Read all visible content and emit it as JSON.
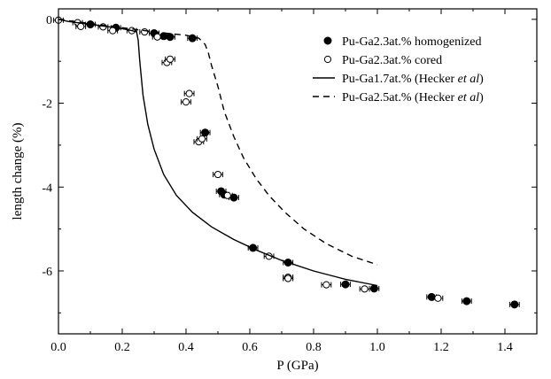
{
  "chart_data": {
    "type": "scatter",
    "xlabel": "P (GPa)",
    "ylabel": "length change (%)",
    "xlim": [
      0.0,
      1.5
    ],
    "ylim": [
      -7.5,
      0.25
    ],
    "x_ticks": [
      0.0,
      0.2,
      0.4,
      0.6,
      0.8,
      1.0,
      1.2,
      1.4
    ],
    "x_tick_labels": [
      "0.0",
      "0.2",
      "0.4",
      "0.6",
      "0.8",
      "1.0",
      "1.2",
      "1.4"
    ],
    "y_ticks": [
      0,
      -2,
      -4,
      -6
    ],
    "y_tick_labels": [
      "0",
      "-2",
      "-4",
      "-6"
    ],
    "grid": false,
    "legend_position": "top-right",
    "series": [
      {
        "name": "Pu-Ga2.3at.% homogenized",
        "kind": "scatter",
        "marker": "filled-circle",
        "points": [
          [
            0.1,
            -0.12
          ],
          [
            0.18,
            -0.2
          ],
          [
            0.3,
            -0.33
          ],
          [
            0.33,
            -0.4
          ],
          [
            0.35,
            -0.42
          ],
          [
            0.42,
            -0.45
          ],
          [
            0.46,
            -2.7
          ],
          [
            0.51,
            -4.1
          ],
          [
            0.52,
            -4.18
          ],
          [
            0.55,
            -4.25
          ],
          [
            0.61,
            -5.45
          ],
          [
            0.72,
            -5.8
          ],
          [
            0.9,
            -6.32
          ],
          [
            0.99,
            -6.42
          ],
          [
            1.17,
            -6.62
          ],
          [
            1.28,
            -6.72
          ],
          [
            1.43,
            -6.8
          ]
        ],
        "error_bars": true
      },
      {
        "name": "Pu-Ga2.3at.% cored",
        "kind": "scatter",
        "marker": "open-circle",
        "points": [
          [
            0.0,
            -0.02
          ],
          [
            0.06,
            -0.08
          ],
          [
            0.07,
            -0.17
          ],
          [
            0.14,
            -0.18
          ],
          [
            0.17,
            -0.27
          ],
          [
            0.23,
            -0.27
          ],
          [
            0.27,
            -0.3
          ],
          [
            0.31,
            -0.42
          ],
          [
            0.34,
            -1.03
          ],
          [
            0.35,
            -0.95
          ],
          [
            0.4,
            -1.97
          ],
          [
            0.41,
            -1.77
          ],
          [
            0.44,
            -2.92
          ],
          [
            0.45,
            -2.85
          ],
          [
            0.5,
            -3.7
          ],
          [
            0.53,
            -4.2
          ],
          [
            0.66,
            -5.65
          ],
          [
            0.72,
            -6.15
          ],
          [
            0.72,
            -6.18
          ],
          [
            0.84,
            -6.33
          ],
          [
            0.96,
            -6.43
          ],
          [
            1.19,
            -6.65
          ]
        ],
        "error_bars": true
      },
      {
        "name": "Pu-Ga1.7at.% (Hecker et al)",
        "kind": "line",
        "style": "solid",
        "points": [
          [
            0.0,
            0.0
          ],
          [
            0.03,
            -0.05
          ],
          [
            0.08,
            -0.1
          ],
          [
            0.13,
            -0.15
          ],
          [
            0.18,
            -0.2
          ],
          [
            0.22,
            -0.25
          ],
          [
            0.245,
            -0.3
          ],
          [
            0.25,
            -0.5
          ],
          [
            0.255,
            -1.0
          ],
          [
            0.265,
            -1.8
          ],
          [
            0.28,
            -2.5
          ],
          [
            0.3,
            -3.1
          ],
          [
            0.33,
            -3.7
          ],
          [
            0.37,
            -4.2
          ],
          [
            0.42,
            -4.6
          ],
          [
            0.48,
            -4.95
          ],
          [
            0.55,
            -5.25
          ],
          [
            0.62,
            -5.5
          ],
          [
            0.7,
            -5.75
          ],
          [
            0.8,
            -6.0
          ],
          [
            0.9,
            -6.2
          ],
          [
            1.0,
            -6.35
          ]
        ]
      },
      {
        "name": "Pu-Ga2.5at.% (Hecker et al)",
        "kind": "line",
        "style": "dashed",
        "points": [
          [
            0.0,
            0.0
          ],
          [
            0.1,
            -0.1
          ],
          [
            0.2,
            -0.2
          ],
          [
            0.3,
            -0.3
          ],
          [
            0.4,
            -0.38
          ],
          [
            0.44,
            -0.45
          ],
          [
            0.46,
            -0.6
          ],
          [
            0.47,
            -0.8
          ],
          [
            0.48,
            -1.1
          ],
          [
            0.5,
            -1.6
          ],
          [
            0.52,
            -2.2
          ],
          [
            0.55,
            -2.8
          ],
          [
            0.58,
            -3.3
          ],
          [
            0.62,
            -3.8
          ],
          [
            0.66,
            -4.2
          ],
          [
            0.71,
            -4.6
          ],
          [
            0.77,
            -5.0
          ],
          [
            0.84,
            -5.35
          ],
          [
            0.92,
            -5.65
          ],
          [
            1.0,
            -5.85
          ]
        ]
      }
    ],
    "legend": [
      {
        "label": "Pu-Ga2.3at.% homogenized",
        "marker": "filled-circle"
      },
      {
        "label": " Pu-Ga2.3at.% cored",
        "marker": "open-circle"
      },
      {
        "label_prefix": "Pu-Ga1.7at.% (Hecker ",
        "label_italic": "et al",
        "label_suffix": ")",
        "marker": "solid-line"
      },
      {
        "label_prefix": "Pu-Ga2.5at.% (Hecker ",
        "label_italic": "et al",
        "label_suffix": ")",
        "marker": "dashed-line"
      }
    ]
  }
}
